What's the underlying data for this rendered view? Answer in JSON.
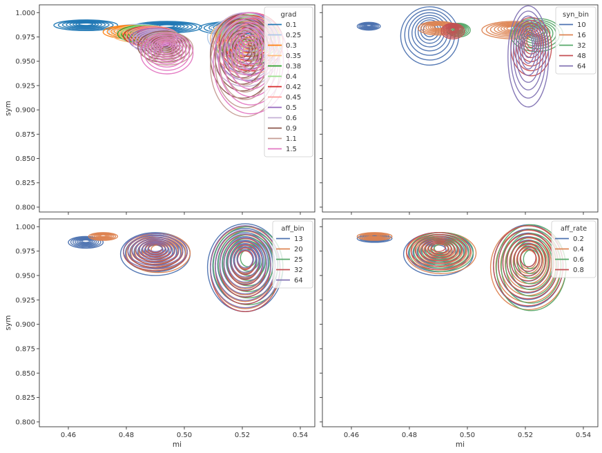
{
  "chart_data": [
    {
      "type": "kde_contour",
      "panel": "top-left",
      "xlabel": "",
      "ylabel": "sym",
      "xlim": [
        0.45,
        0.545
      ],
      "ylim": [
        0.795,
        1.008
      ],
      "x_ticks": [
        "0.46",
        "0.48",
        "0.50",
        "0.52",
        "0.54"
      ],
      "y_ticks": [
        "1.000",
        "0.975",
        "0.950",
        "0.925",
        "0.900",
        "0.875",
        "0.850",
        "0.825",
        "0.800"
      ],
      "show_x_tick_labels": false,
      "show_y_tick_labels": true,
      "legend": {
        "title": "grad",
        "placement": "top-right",
        "entries": [
          {
            "label": "0.1",
            "color": "#1f77b4"
          },
          {
            "label": "0.25",
            "color": "#aec7e8"
          },
          {
            "label": "0.3",
            "color": "#ff7f0e"
          },
          {
            "label": "0.35",
            "color": "#ffbb78"
          },
          {
            "label": "0.38",
            "color": "#2ca02c"
          },
          {
            "label": "0.4",
            "color": "#98df8a"
          },
          {
            "label": "0.42",
            "color": "#d62728"
          },
          {
            "label": "0.45",
            "color": "#ff9896"
          },
          {
            "label": "0.5",
            "color": "#9467bd"
          },
          {
            "label": "0.6",
            "color": "#c5b0d5"
          },
          {
            "label": "0.9",
            "color": "#8c564b"
          },
          {
            "label": "1.1",
            "color": "#c49c94"
          },
          {
            "label": "1.5",
            "color": "#e377c2"
          }
        ]
      },
      "series": [
        {
          "name": "0.1",
          "color": "#1f77b4",
          "blobs": [
            [
              0.466,
              0.987,
              0.011,
              0.0055
            ],
            [
              0.494,
              0.985,
              0.012,
              0.006
            ],
            [
              0.518,
              0.984,
              0.013,
              0.007
            ]
          ]
        },
        {
          "name": "0.25",
          "color": "#aec7e8",
          "blobs": [
            [
              0.484,
              0.98,
              0.01,
              0.008
            ],
            [
              0.52,
              0.975,
              0.012,
              0.02
            ]
          ]
        },
        {
          "name": "0.3",
          "color": "#ff7f0e",
          "blobs": [
            [
              0.482,
              0.98,
              0.01,
              0.007
            ],
            [
              0.522,
              0.975,
              0.011,
              0.02
            ]
          ]
        },
        {
          "name": "0.35",
          "color": "#ffbb78",
          "blobs": [
            [
              0.485,
              0.978,
              0.01,
              0.009
            ],
            [
              0.521,
              0.973,
              0.012,
              0.022
            ]
          ]
        },
        {
          "name": "0.38",
          "color": "#2ca02c",
          "blobs": [
            [
              0.486,
              0.978,
              0.009,
              0.009
            ],
            [
              0.523,
              0.972,
              0.011,
              0.025
            ]
          ]
        },
        {
          "name": "0.4",
          "color": "#98df8a",
          "blobs": [
            [
              0.487,
              0.977,
              0.009,
              0.01
            ],
            [
              0.522,
              0.97,
              0.011,
              0.028
            ]
          ]
        },
        {
          "name": "0.42",
          "color": "#d62728",
          "blobs": [
            [
              0.488,
              0.976,
              0.009,
              0.01
            ],
            [
              0.523,
              0.97,
              0.011,
              0.03
            ]
          ]
        },
        {
          "name": "0.45",
          "color": "#ff9896",
          "blobs": [
            [
              0.489,
              0.975,
              0.009,
              0.011
            ],
            [
              0.522,
              0.968,
              0.012,
              0.032
            ]
          ]
        },
        {
          "name": "0.5",
          "color": "#9467bd",
          "blobs": [
            [
              0.49,
              0.972,
              0.009,
              0.012
            ],
            [
              0.522,
              0.965,
              0.011,
              0.035
            ]
          ]
        },
        {
          "name": "0.6",
          "color": "#c5b0d5",
          "blobs": [
            [
              0.491,
              0.97,
              0.009,
              0.013
            ],
            [
              0.521,
              0.962,
              0.012,
              0.038
            ]
          ]
        },
        {
          "name": "0.9",
          "color": "#8c564b",
          "blobs": [
            [
              0.493,
              0.965,
              0.009,
              0.016
            ],
            [
              0.52,
              0.955,
              0.011,
              0.043
            ]
          ]
        },
        {
          "name": "1.1",
          "color": "#c49c94",
          "blobs": [
            [
              0.494,
              0.963,
              0.009,
              0.017
            ],
            [
              0.521,
              0.945,
              0.012,
              0.052
            ]
          ]
        },
        {
          "name": "1.5",
          "color": "#e377c2",
          "blobs": [
            [
              0.494,
              0.958,
              0.009,
              0.021
            ],
            [
              0.523,
              0.948,
              0.013,
              0.052
            ]
          ]
        }
      ]
    },
    {
      "type": "kde_contour",
      "panel": "top-right",
      "xlabel": "",
      "ylabel": "",
      "xlim": [
        0.45,
        0.545
      ],
      "ylim": [
        0.795,
        1.008
      ],
      "x_ticks": [
        "0.46",
        "0.48",
        "0.50",
        "0.52",
        "0.54"
      ],
      "y_ticks": [
        "1.000",
        "0.975",
        "0.950",
        "0.925",
        "0.900",
        "0.875",
        "0.850",
        "0.825",
        "0.800"
      ],
      "show_x_tick_labels": false,
      "show_y_tick_labels": false,
      "legend": {
        "title": "syn_bin",
        "placement": "top-right",
        "entries": [
          {
            "label": "10",
            "color": "#4c72b0"
          },
          {
            "label": "16",
            "color": "#dd8452"
          },
          {
            "label": "32",
            "color": "#55a868"
          },
          {
            "label": "48",
            "color": "#c44e52"
          },
          {
            "label": "64",
            "color": "#8172b3"
          }
        ]
      },
      "series": [
        {
          "name": "10",
          "color": "#4c72b0",
          "blobs": [
            [
              0.466,
              0.986,
              0.004,
              0.004
            ],
            [
              0.487,
              0.976,
              0.01,
              0.03
            ]
          ]
        },
        {
          "name": "16",
          "color": "#dd8452",
          "blobs": [
            [
              0.49,
              0.984,
              0.007,
              0.007
            ],
            [
              0.516,
              0.982,
              0.011,
              0.009
            ]
          ]
        },
        {
          "name": "32",
          "color": "#55a868",
          "blobs": [
            [
              0.497,
              0.982,
              0.004,
              0.007
            ],
            [
              0.524,
              0.977,
              0.009,
              0.017
            ]
          ]
        },
        {
          "name": "48",
          "color": "#c44e52",
          "blobs": [
            [
              0.495,
              0.981,
              0.004,
              0.008
            ],
            [
              0.522,
              0.965,
              0.007,
              0.03
            ]
          ]
        },
        {
          "name": "64",
          "color": "#8172b3",
          "blobs": [
            [
              0.521,
              0.955,
              0.007,
              0.052
            ]
          ]
        }
      ]
    },
    {
      "type": "kde_contour",
      "panel": "bottom-left",
      "xlabel": "mi",
      "ylabel": "sym",
      "xlim": [
        0.45,
        0.545
      ],
      "ylim": [
        0.795,
        1.008
      ],
      "x_ticks": [
        "0.46",
        "0.48",
        "0.50",
        "0.52",
        "0.54"
      ],
      "y_ticks": [
        "1.000",
        "0.975",
        "0.950",
        "0.925",
        "0.900",
        "0.875",
        "0.850",
        "0.825",
        "0.800"
      ],
      "show_x_tick_labels": true,
      "show_y_tick_labels": true,
      "legend": {
        "title": "aff_bin",
        "placement": "top-right",
        "entries": [
          {
            "label": "13",
            "color": "#4c72b0"
          },
          {
            "label": "20",
            "color": "#dd8452"
          },
          {
            "label": "25",
            "color": "#55a868"
          },
          {
            "label": "32",
            "color": "#c44e52"
          },
          {
            "label": "64",
            "color": "#8172b3"
          }
        ]
      },
      "series": [
        {
          "name": "13",
          "color": "#4c72b0",
          "blobs": [
            [
              0.466,
              0.984,
              0.006,
              0.006
            ],
            [
              0.49,
              0.972,
              0.012,
              0.022
            ],
            [
              0.521,
              0.958,
              0.013,
              0.045
            ]
          ]
        },
        {
          "name": "20",
          "color": "#dd8452",
          "blobs": [
            [
              0.472,
              0.99,
              0.005,
              0.004
            ],
            [
              0.491,
              0.973,
              0.011,
              0.02
            ],
            [
              0.521,
              0.958,
              0.012,
              0.042
            ]
          ]
        },
        {
          "name": "25",
          "color": "#55a868",
          "blobs": [
            [
              0.49,
              0.974,
              0.011,
              0.019
            ],
            [
              0.522,
              0.96,
              0.012,
              0.04
            ]
          ]
        },
        {
          "name": "32",
          "color": "#c44e52",
          "blobs": [
            [
              0.49,
              0.974,
              0.011,
              0.019
            ],
            [
              0.521,
              0.957,
              0.012,
              0.044
            ]
          ]
        },
        {
          "name": "64",
          "color": "#8172b3",
          "blobs": [
            [
              0.49,
              0.975,
              0.011,
              0.018
            ],
            [
              0.521,
              0.959,
              0.012,
              0.042
            ]
          ]
        }
      ]
    },
    {
      "type": "kde_contour",
      "panel": "bottom-right",
      "xlabel": "mi",
      "ylabel": "",
      "xlim": [
        0.45,
        0.545
      ],
      "ylim": [
        0.795,
        1.008
      ],
      "x_ticks": [
        "0.46",
        "0.48",
        "0.50",
        "0.52",
        "0.54"
      ],
      "y_ticks": [
        "1.000",
        "0.975",
        "0.950",
        "0.925",
        "0.900",
        "0.875",
        "0.850",
        "0.825",
        "0.800"
      ],
      "show_x_tick_labels": true,
      "show_y_tick_labels": false,
      "legend": {
        "title": "aff_rate",
        "placement": "top-right",
        "entries": [
          {
            "label": "0.2",
            "color": "#4c72b0"
          },
          {
            "label": "0.4",
            "color": "#dd8452"
          },
          {
            "label": "0.6",
            "color": "#55a868"
          },
          {
            "label": "0.8",
            "color": "#c44e52"
          }
        ]
      },
      "series": [
        {
          "name": "0.2",
          "color": "#4c72b0",
          "blobs": [
            [
              0.468,
              0.988,
              0.006,
              0.004
            ],
            [
              0.49,
              0.972,
              0.012,
              0.022
            ],
            [
              0.521,
              0.96,
              0.012,
              0.042
            ]
          ]
        },
        {
          "name": "0.4",
          "color": "#dd8452",
          "blobs": [
            [
              0.468,
              0.99,
              0.006,
              0.004
            ],
            [
              0.491,
              0.973,
              0.012,
              0.021
            ],
            [
              0.521,
              0.958,
              0.013,
              0.043
            ]
          ]
        },
        {
          "name": "0.6",
          "color": "#55a868",
          "blobs": [
            [
              0.491,
              0.974,
              0.011,
              0.02
            ],
            [
              0.522,
              0.958,
              0.012,
              0.044
            ]
          ]
        },
        {
          "name": "0.8",
          "color": "#c44e52",
          "blobs": [
            [
              0.49,
              0.975,
              0.011,
              0.019
            ],
            [
              0.521,
              0.96,
              0.012,
              0.041
            ]
          ]
        }
      ]
    }
  ]
}
